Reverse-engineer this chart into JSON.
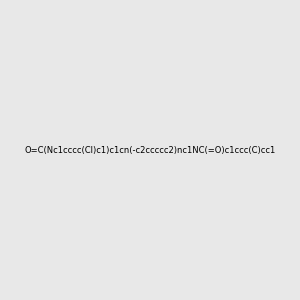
{
  "smiles": "O=C(Nc1cccc(Cl)c1)c1cn(-c2ccccc2)nc1NC(=O)c1ccc(C)cc1",
  "title": "",
  "background_color": "#e8e8e8",
  "figsize": [
    3.0,
    3.0
  ],
  "dpi": 100
}
